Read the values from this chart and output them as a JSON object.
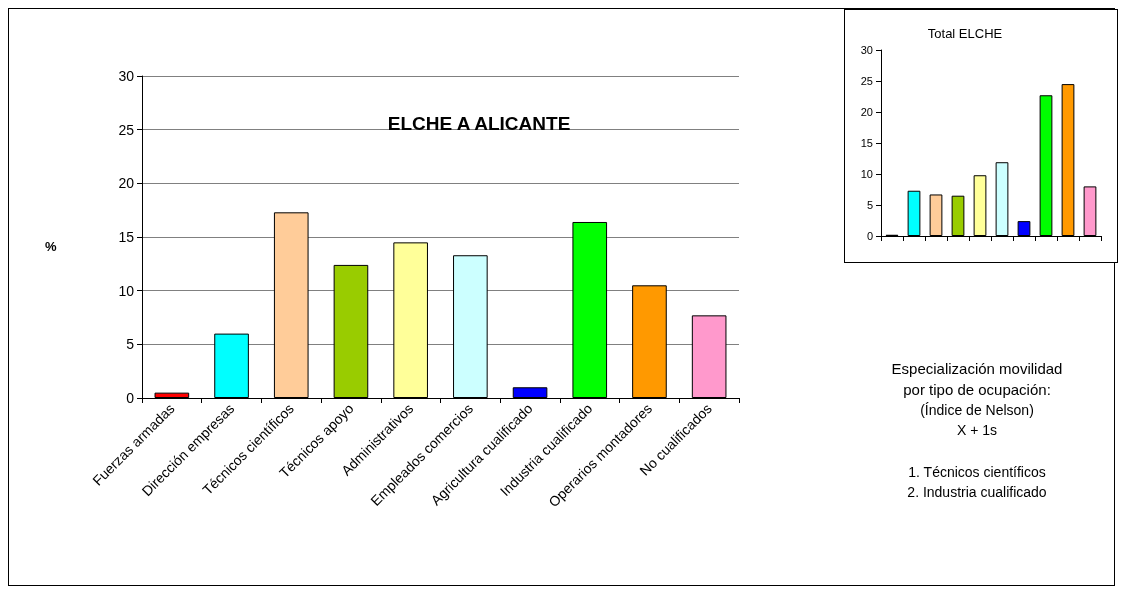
{
  "chart_data": [
    {
      "type": "bar",
      "title": "ELCHE A ALICANTE",
      "ylabel": "%",
      "categories": [
        "Fuerzas armadas",
        "Dirección empresas",
        "Técnicos científicos",
        "Técnicos apoyo",
        "Administrativos",
        "Empleados comercios",
        "Agricultura cualificado",
        "Industria cualificado",
        "Operarios montadores",
        "No cualificados"
      ],
      "values": [
        0.5,
        6.0,
        17.3,
        12.4,
        14.5,
        13.3,
        1.0,
        16.4,
        10.5,
        7.7
      ],
      "colors": [
        "#ff0000",
        "#00ffff",
        "#ffcc99",
        "#99cc00",
        "#ffff99",
        "#ccffff",
        "#0000ff",
        "#00ff00",
        "#ff9900",
        "#ff99cc"
      ],
      "ylim": [
        0,
        30
      ],
      "yticks": [
        0,
        5,
        10,
        15,
        20,
        25,
        30
      ],
      "grid": "y",
      "annotations": [
        "Especialización movilidad",
        "por tipo de ocupación:",
        "(Índice de Nelson)",
        "X + 1s",
        "1. Técnicos científicos",
        "2. Industria cualificado"
      ]
    },
    {
      "type": "bar",
      "title": "Total ELCHE",
      "categories": [
        null,
        null,
        null,
        null,
        null,
        null,
        null,
        null,
        null,
        null
      ],
      "values": [
        0.2,
        7.3,
        6.7,
        6.5,
        9.8,
        11.9,
        2.4,
        22.7,
        24.5,
        8.0
      ],
      "colors": [
        "#330000",
        "#00ffff",
        "#ffcc99",
        "#99cc00",
        "#ffff99",
        "#ccffff",
        "#0000ff",
        "#00ff00",
        "#ff9900",
        "#ff99cc"
      ],
      "ylim": [
        0,
        30
      ],
      "yticks": [
        0,
        5,
        10,
        15,
        20,
        25,
        30
      ],
      "grid": false
    }
  ]
}
